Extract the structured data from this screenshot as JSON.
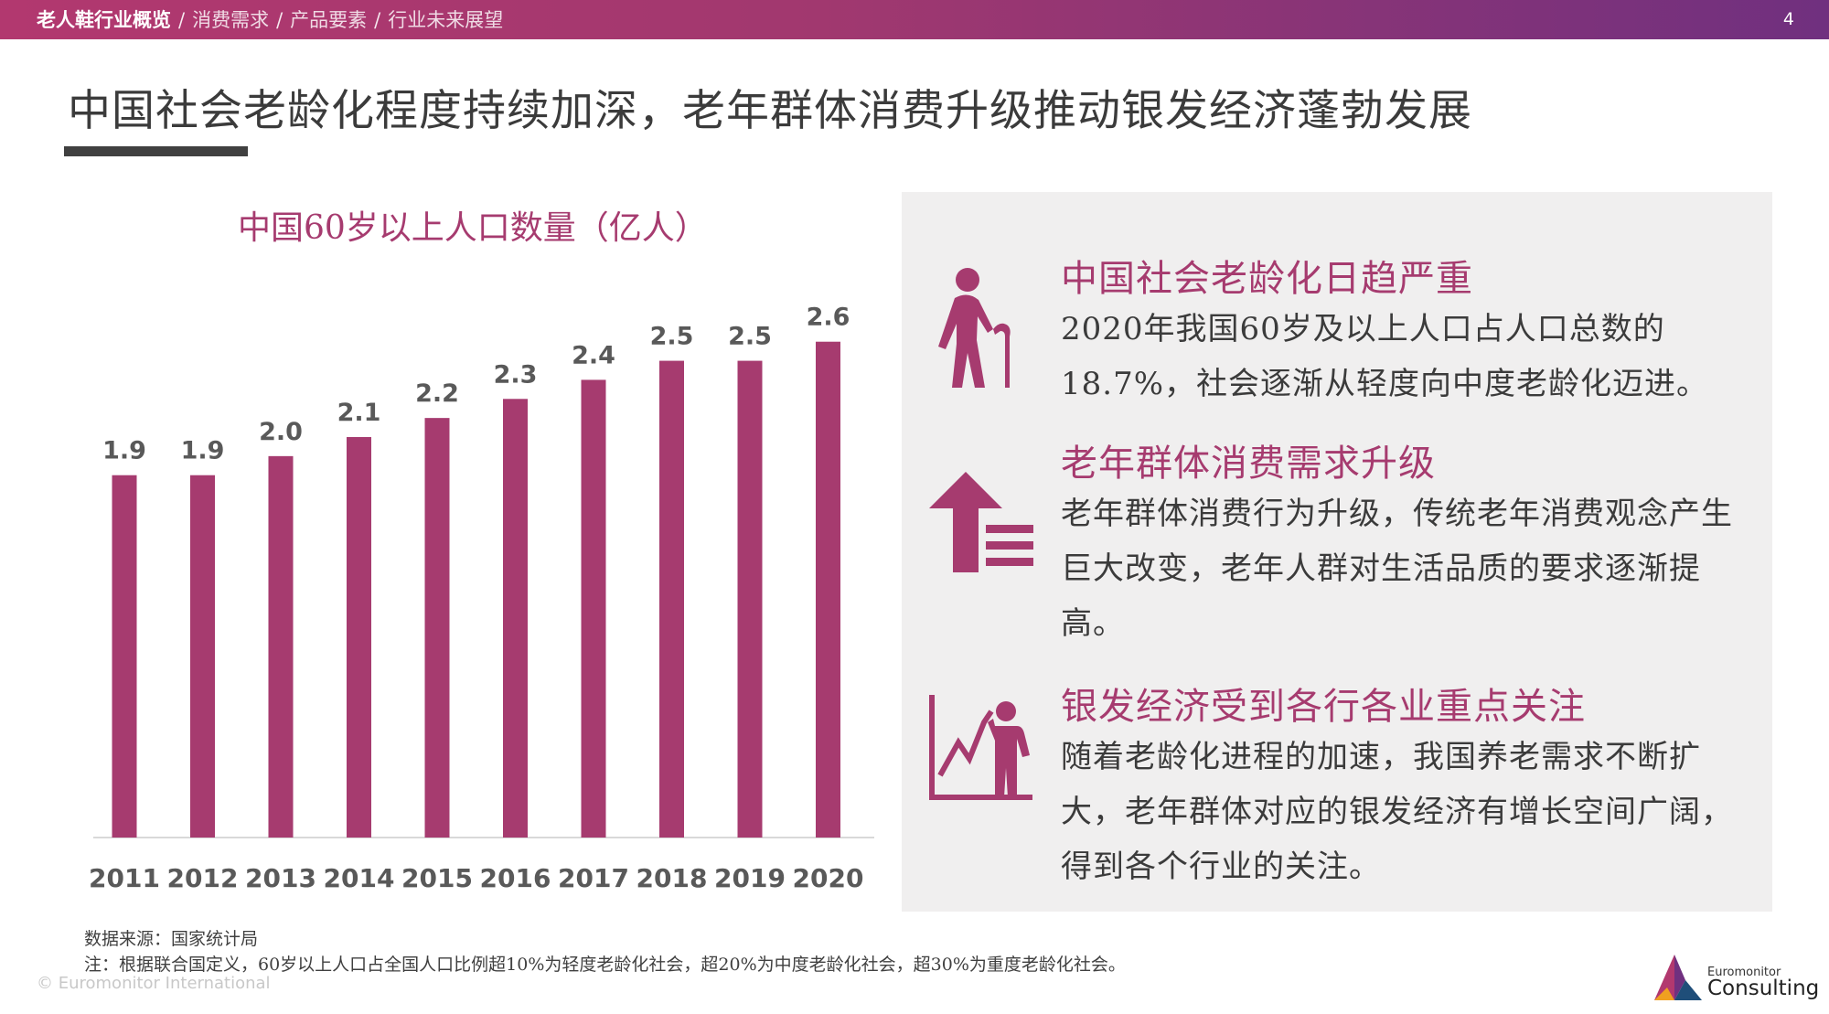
{
  "header": {
    "breadcrumbs": [
      {
        "label": "老人鞋行业概览",
        "active": true
      },
      {
        "label": "消费需求",
        "active": false
      },
      {
        "label": "产品要素",
        "active": false
      },
      {
        "label": "行业未来展望",
        "active": false
      }
    ],
    "separator": "/",
    "page_number": "4"
  },
  "title": "中国社会老龄化程度持续加深，老年群体消费升级推动银发经济蓬勃发展",
  "chart_data": {
    "type": "bar",
    "title": "中国60岁以上人口数量（亿人）",
    "categories": [
      "2011",
      "2012",
      "2013",
      "2014",
      "2015",
      "2016",
      "2017",
      "2018",
      "2019",
      "2020"
    ],
    "values": [
      1.9,
      1.9,
      2.0,
      2.1,
      2.2,
      2.3,
      2.4,
      2.5,
      2.5,
      2.6
    ],
    "ylim": [
      0,
      2.8
    ],
    "grid": false,
    "bar_color": "#a63b6f"
  },
  "panel": {
    "items": [
      {
        "heading": "中国社会老龄化日趋严重",
        "body": "2020年我国60岁及以上人口占人口总数的18.7%，社会逐渐从轻度向中度老龄化迈进。",
        "icon": "elderly-person-cane-icon"
      },
      {
        "heading": "老年群体消费需求升级",
        "body": "老年群体消费行为升级，传统老年消费观念产生巨大改变，老年人群对生活品质的要求逐渐提高。",
        "icon": "upgrade-arrow-icon"
      },
      {
        "heading": "银发经济受到各行各业重点关注",
        "body": "随着老龄化进程的加速，我国养老需求不断扩大，老年群体对应的银发经济有增长空间广阔，得到各个行业的关注。",
        "icon": "person-growth-chart-icon"
      }
    ]
  },
  "footnotes": {
    "source": "数据来源：国家统计局",
    "note": "注：根据联合国定义，60岁以上人口占全国人口比例超10%为轻度老龄化社会，超20%为中度老龄化社会，超30%为重度老龄化社会。",
    "copyright": "© Euromonitor International"
  },
  "logo": {
    "top": "Euromonitor",
    "main": "Consulting"
  },
  "colors": {
    "accent": "#a63b6f",
    "header_start": "#b2386f",
    "header_end": "#70307f",
    "panel_bg": "#f0efef"
  }
}
